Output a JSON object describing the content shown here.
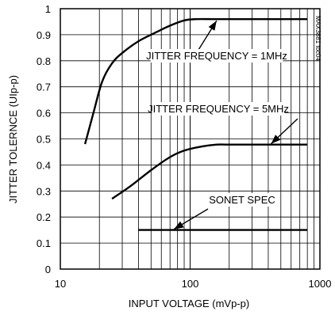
{
  "chart_data": {
    "type": "line",
    "title": "",
    "xlabel": "INPUT VOLTAGE (mVp-p)",
    "ylabel": "JITTER TOLERNCE (UIp-p)",
    "xscale": "log",
    "xlim": [
      10,
      1000
    ],
    "ylim": [
      0,
      1
    ],
    "grid": true,
    "legend": "none",
    "x_ticks": [
      10,
      100,
      1000
    ],
    "x_tick_labels": [
      "10",
      "100",
      "1000"
    ],
    "y_ticks": [
      0,
      0.1,
      0.2,
      0.3,
      0.4,
      0.5,
      0.6,
      0.7,
      0.8,
      0.9,
      1
    ],
    "y_tick_labels": [
      "0",
      "0.1",
      "0.2",
      "0.3",
      "0.4",
      "0.5",
      "0.6",
      "0.7",
      "0.8",
      "0.9",
      "1"
    ],
    "series": [
      {
        "name": "JITTER FREQUENCY = 1MHz",
        "x": [
          15.5,
          18,
          21,
          25,
          30,
          40,
          55,
          70,
          90,
          110,
          150,
          200,
          400,
          800
        ],
        "y": [
          0.48,
          0.6,
          0.72,
          0.79,
          0.83,
          0.875,
          0.91,
          0.935,
          0.955,
          0.96,
          0.96,
          0.96,
          0.96,
          0.96
        ]
      },
      {
        "name": "JITTER FREQUENCY = 5MHz",
        "x": [
          25,
          35,
          50,
          70,
          90,
          120,
          160,
          200,
          400,
          800
        ],
        "y": [
          0.27,
          0.32,
          0.38,
          0.43,
          0.455,
          0.47,
          0.478,
          0.478,
          0.478,
          0.478
        ]
      },
      {
        "name": "SONET SPEC",
        "x": [
          40,
          800
        ],
        "y": [
          0.15,
          0.15
        ]
      }
    ],
    "annotations": [
      {
        "text": "JITTER FREQUENCY = 1MHz",
        "series": 0
      },
      {
        "text": "JITTER FREQUENCY = 5MHz",
        "series": 1
      },
      {
        "text": "SONET SPEC",
        "series": 2
      }
    ],
    "figure_code": "MAX3881 toc04",
    "colors": {
      "line": "#000000",
      "grid": "#000000"
    }
  }
}
